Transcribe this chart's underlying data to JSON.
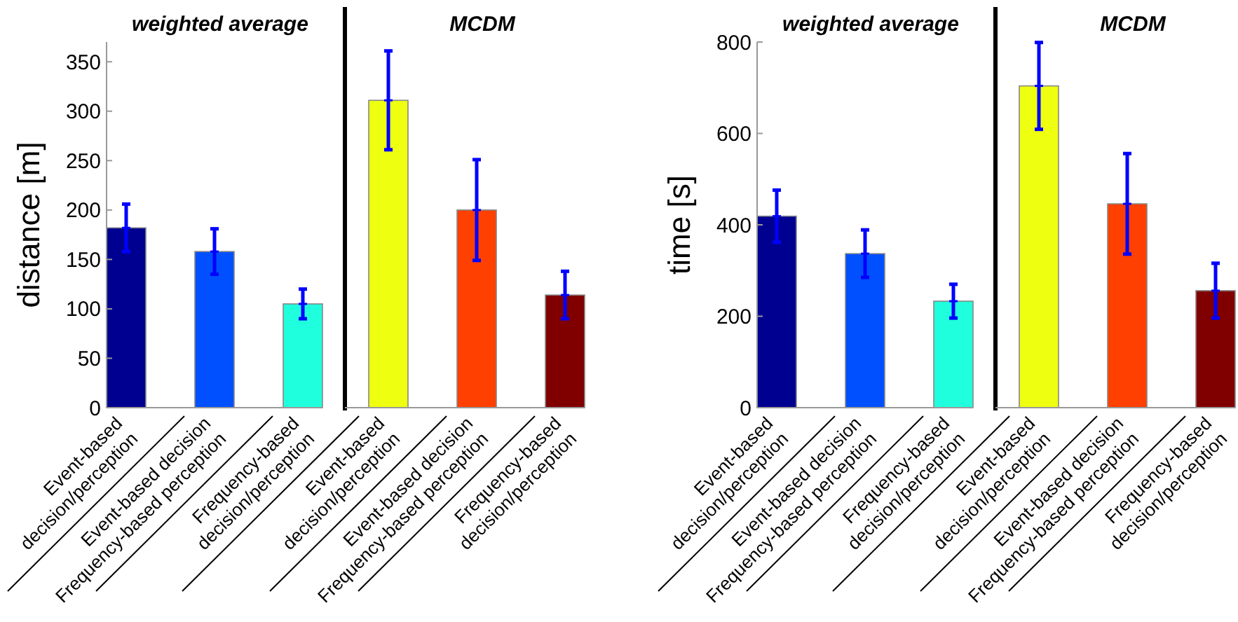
{
  "chart_data": [
    {
      "type": "bar",
      "title": "weighted average",
      "ylabel": "distance [m]",
      "categories": [
        "Event-based\ndecision/perception",
        "Event-based decision\nFrequency-based perception",
        "Frequency-based\ndecision/perception"
      ],
      "values": [
        182,
        158,
        105
      ],
      "errors": [
        24,
        23,
        15
      ],
      "colors": [
        "#000090",
        "#0050ff",
        "#20ffdd"
      ],
      "ylim": [
        0,
        370
      ],
      "yticks": [
        0,
        50,
        100,
        150,
        200,
        250,
        300,
        350
      ]
    },
    {
      "type": "bar",
      "title": "MCDM",
      "categories": [
        "Event-based\ndecision/perception",
        "Event-based decision\nFrequency-based perception",
        "Frequency-based\ndecision/perception"
      ],
      "values": [
        311,
        200,
        114
      ],
      "errors": [
        50,
        51,
        24
      ],
      "colors": [
        "#eeff10",
        "#ff4000",
        "#800000"
      ],
      "ylim": [
        0,
        370
      ],
      "tick_labels": "x"
    },
    {
      "type": "bar",
      "title": "weighted average",
      "ylabel": "time [s]",
      "categories": [
        "Event-based\ndecision/perception",
        "Event-based decision\nFrequency-based perception",
        "Frequency-based\ndecision/perception"
      ],
      "values": [
        419,
        337,
        233
      ],
      "errors": [
        57,
        52,
        37
      ],
      "colors": [
        "#000090",
        "#0050ff",
        "#20ffdd"
      ],
      "ylim": [
        0,
        800
      ],
      "yticks": [
        0,
        200,
        400,
        600,
        800
      ]
    },
    {
      "type": "bar",
      "title": "MCDM",
      "categories": [
        "Event-based\ndecision/perception",
        "Event-based decision\nFrequency-based perception",
        "Frequency-based\ndecision/perception"
      ],
      "values": [
        704,
        446,
        256
      ],
      "errors": [
        95,
        110,
        60
      ],
      "colors": [
        "#eeff10",
        "#ff4000",
        "#800000"
      ],
      "ylim": [
        0,
        800
      ],
      "tick_labels": "x"
    }
  ]
}
